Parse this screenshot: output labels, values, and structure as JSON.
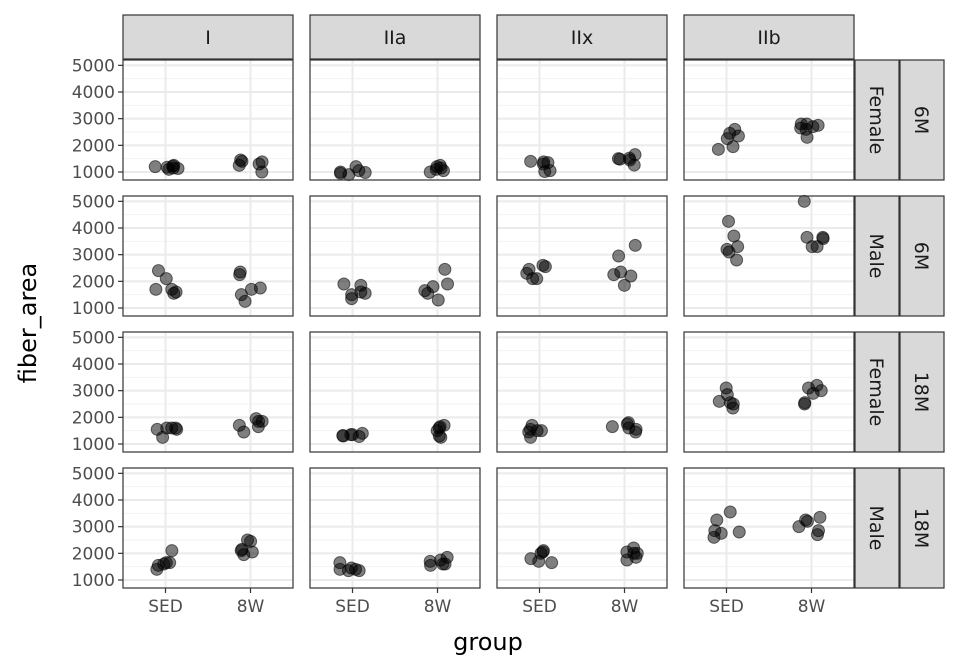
{
  "chart_data": {
    "type": "scatter",
    "title": "",
    "xlabel": "group",
    "ylabel": "fiber_area",
    "x_categories": [
      "SED",
      "8W"
    ],
    "y_ticks": [
      1000,
      2000,
      3000,
      4000,
      5000
    ],
    "ylim": [
      700,
      5200
    ],
    "grid": true,
    "columns": [
      "I",
      "IIa",
      "IIx",
      "IIb"
    ],
    "rows": [
      {
        "sex": "Female",
        "age": "6M"
      },
      {
        "sex": "Male",
        "age": "6M"
      },
      {
        "sex": "Female",
        "age": "18M"
      },
      {
        "sex": "Male",
        "age": "18M"
      }
    ],
    "panels": [
      {
        "row": 0,
        "col": 0,
        "SED": [
          1250,
          1200,
          1150,
          1100,
          1220,
          1180,
          1130
        ],
        "8W": [
          1000,
          1450,
          1300,
          1400,
          1250,
          1380
        ]
      },
      {
        "row": 0,
        "col": 1,
        "SED": [
          1200,
          950,
          900,
          1050,
          1000,
          980
        ],
        "8W": [
          1200,
          1050,
          1150,
          1100,
          1000,
          1250
        ]
      },
      {
        "row": 0,
        "col": 2,
        "SED": [
          1400,
          1350,
          1300,
          1020,
          1050,
          1380
        ],
        "8W": [
          1450,
          1500,
          1520,
          1650,
          1260,
          1480
        ]
      },
      {
        "row": 0,
        "col": 3,
        "SED": [
          1950,
          2350,
          2450,
          1850,
          2600,
          2250
        ],
        "8W": [
          2300,
          2800,
          2750,
          2700,
          2600,
          2650,
          2800
        ]
      },
      {
        "row": 1,
        "col": 0,
        "SED": [
          1550,
          2100,
          2400,
          1600,
          1700,
          1700
        ],
        "8W": [
          1250,
          2250,
          2350,
          1750,
          1500,
          1700
        ]
      },
      {
        "row": 1,
        "col": 1,
        "SED": [
          1850,
          1350,
          1600,
          1550,
          1500,
          1900
        ],
        "8W": [
          2450,
          1800,
          1300,
          1550,
          1900,
          1650
        ]
      },
      {
        "row": 1,
        "col": 2,
        "SED": [
          2300,
          2450,
          2550,
          2100,
          2600,
          2100
        ],
        "8W": [
          2950,
          1850,
          2200,
          2350,
          2250,
          3350
        ]
      },
      {
        "row": 1,
        "col": 3,
        "SED": [
          3200,
          3100,
          4250,
          3700,
          3300,
          2800
        ],
        "8W": [
          5000,
          3650,
          3650,
          3300,
          3300,
          3600
        ]
      },
      {
        "row": 2,
        "col": 0,
        "SED": [
          1550,
          1600,
          1600,
          1250,
          1550,
          1600
        ],
        "8W": [
          1950,
          1850,
          1650,
          1850,
          1450,
          1700
        ]
      },
      {
        "row": 2,
        "col": 1,
        "SED": [
          1350,
          1400,
          1350,
          1300,
          1320,
          1280
        ],
        "8W": [
          1250,
          1500,
          1700,
          1300,
          1650,
          1600
        ]
      },
      {
        "row": 2,
        "col": 2,
        "SED": [
          1500,
          1450,
          1500,
          1550,
          1700,
          1250
        ],
        "8W": [
          1600,
          1800,
          1750,
          1450,
          1550,
          1650
        ]
      },
      {
        "row": 2,
        "col": 3,
        "SED": [
          3100,
          2600,
          2500,
          2550,
          2850,
          2350
        ],
        "8W": [
          3200,
          3000,
          2900,
          2500,
          2550,
          3100
        ]
      },
      {
        "row": 3,
        "col": 0,
        "SED": [
          1650,
          2100,
          1550,
          1400,
          1650,
          1600
        ],
        "8W": [
          1950,
          2500,
          2100,
          2450,
          2150,
          2050
        ]
      },
      {
        "row": 3,
        "col": 1,
        "SED": [
          1650,
          1400,
          1350,
          1450,
          1350,
          1400
        ],
        "8W": [
          1600,
          1750,
          1850,
          1600,
          1700,
          1550
        ]
      },
      {
        "row": 3,
        "col": 2,
        "SED": [
          1650,
          1800,
          2050,
          2100,
          2000,
          1700
        ],
        "8W": [
          2000,
          2200,
          2050,
          1750,
          1850,
          2000
        ]
      },
      {
        "row": 3,
        "col": 3,
        "SED": [
          3250,
          2850,
          3550,
          2750,
          2600,
          2800
        ],
        "8W": [
          3000,
          3350,
          2850,
          3200,
          3250,
          2700
        ]
      }
    ]
  },
  "colors": {
    "point": "#000000",
    "strip_fill": "#d9d9d9",
    "panel_border": "#333333",
    "grid_major": "#ebebeb",
    "grid_minor": "#f2f2f2"
  }
}
